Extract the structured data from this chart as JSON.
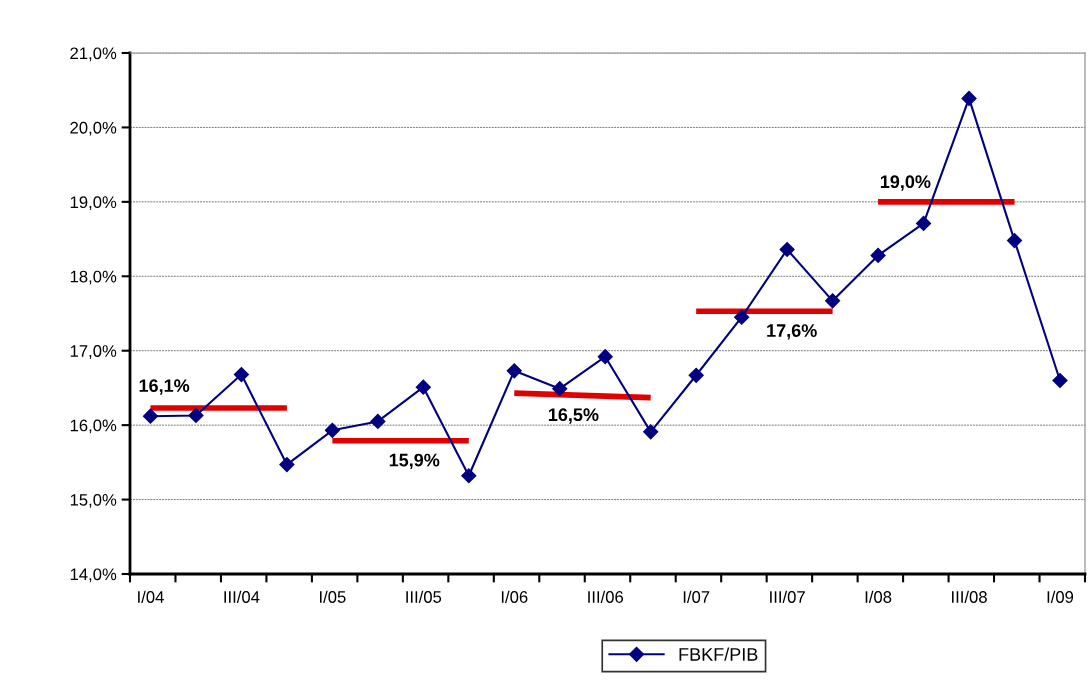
{
  "chart_data": {
    "type": "line",
    "categories": [
      "I/04",
      null,
      "III/04",
      null,
      "I/05",
      null,
      "III/05",
      null,
      "I/06",
      null,
      "III/06",
      null,
      "I/07",
      null,
      "III/07",
      null,
      "I/08",
      null,
      "III/08",
      null,
      "I/09"
    ],
    "series": [
      {
        "name": "FBKF/PIB",
        "color": "#000080",
        "marker": "diamond",
        "values": [
          16.12,
          16.13,
          16.68,
          15.47,
          15.93,
          16.05,
          16.51,
          15.32,
          16.73,
          16.49,
          16.92,
          15.91,
          16.67,
          17.45,
          18.36,
          17.67,
          18.28,
          18.71,
          20.39,
          18.48,
          16.6
        ]
      },
      {
        "type": "line",
        "color": "#e00000",
        "marker": "none",
        "values": [
          16.23,
          16.23,
          16.23,
          16.23,
          null,
          null,
          null,
          null,
          null,
          null,
          null,
          null,
          null,
          null,
          null,
          null,
          null,
          null,
          null,
          null,
          null
        ]
      },
      {
        "type": "line",
        "color": "#e00000",
        "marker": "none",
        "values": [
          null,
          null,
          null,
          null,
          15.79,
          15.79,
          15.79,
          15.79,
          null,
          null,
          null,
          null,
          null,
          null,
          null,
          null,
          null,
          null,
          null,
          null,
          null
        ]
      },
      {
        "type": "line",
        "color": "#e00000",
        "marker": "none",
        "values": [
          null,
          null,
          null,
          null,
          null,
          null,
          null,
          null,
          16.43,
          16.41,
          16.39,
          16.37,
          null,
          null,
          null,
          null,
          null,
          null,
          null,
          null,
          null
        ]
      },
      {
        "type": "line",
        "color": "#e00000",
        "marker": "none",
        "values": [
          null,
          null,
          null,
          null,
          null,
          null,
          null,
          null,
          null,
          null,
          null,
          null,
          17.53,
          17.53,
          17.53,
          17.53,
          null,
          null,
          null,
          null,
          null
        ]
      },
      {
        "type": "line",
        "color": "#e00000",
        "marker": "none",
        "values": [
          null,
          null,
          null,
          null,
          null,
          null,
          null,
          null,
          null,
          null,
          null,
          null,
          null,
          null,
          null,
          null,
          19.0,
          19.0,
          19.0,
          19.0,
          null
        ]
      }
    ],
    "annotations": [
      "16,1%",
      "15,9%",
      "16,5%",
      "17,6%",
      "19,0%"
    ],
    "ylim": [
      14,
      21
    ],
    "yticks": [
      {
        "value": 14,
        "label": "14,0%"
      },
      {
        "value": 15,
        "label": "15,0%"
      },
      {
        "value": 16,
        "label": "16,0%"
      },
      {
        "value": 17,
        "label": "17,0%"
      },
      {
        "value": 18,
        "label": "18,0%"
      },
      {
        "value": 19,
        "label": "19,0%"
      },
      {
        "value": 20,
        "label": "20,0%"
      },
      {
        "value": 21,
        "label": "21,0%"
      }
    ],
    "grid": "y",
    "legend": "bottom",
    "line_style": "solid"
  }
}
